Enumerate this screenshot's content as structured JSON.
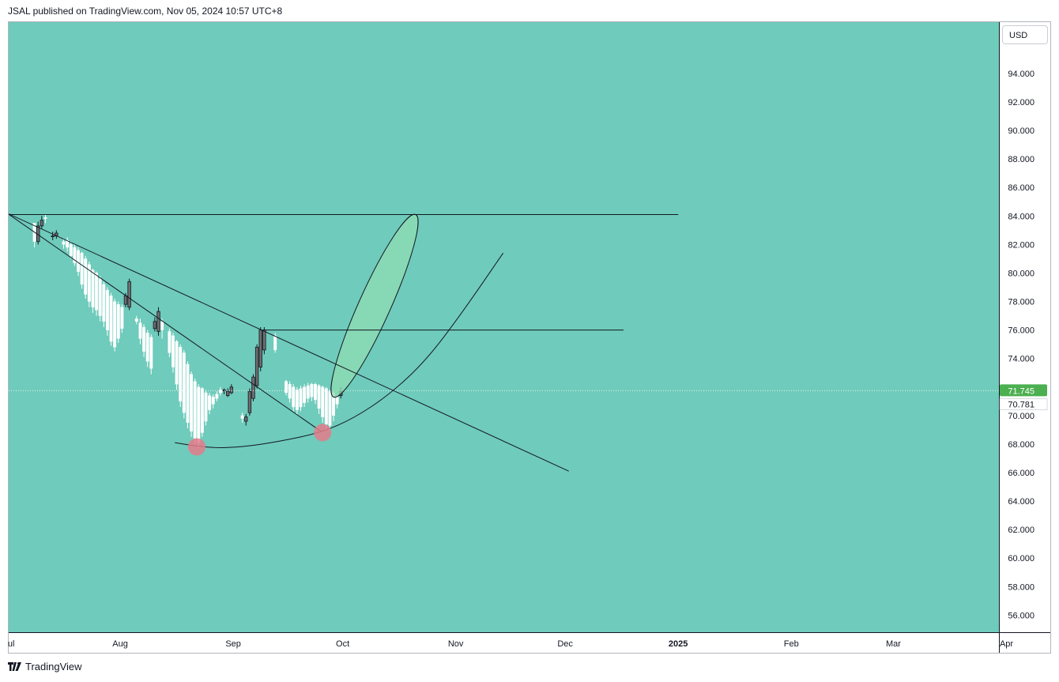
{
  "header": {
    "publish_line": "JSAL published on TradingView.com, Nov 05, 2024 10:57 UTC+8"
  },
  "currency_button": "USD",
  "footer": {
    "brand": "TradingView"
  },
  "colors": {
    "background": "#6fcbbb",
    "up_candle": "#6e6e6e",
    "down_candle": "#ffffff",
    "price_tag": "#4caf50",
    "ellipse_fill": "#8fdcb2",
    "pivot_marker": "#e57b8a"
  },
  "chart_data": {
    "type": "candlestick",
    "title": "",
    "currency": "USD",
    "y_axis": {
      "ylim": [
        54.8,
        97.6
      ],
      "ticks": [
        94,
        92,
        90,
        88,
        86,
        84,
        82,
        80,
        78,
        76,
        74,
        72,
        70,
        68,
        66,
        64,
        62,
        60,
        58,
        56
      ],
      "tick_labels": [
        "94.000",
        "92.000",
        "90.000",
        "88.000",
        "86.000",
        "84.000",
        "82.000",
        "80.000",
        "78.000",
        "76.000",
        "74.000",
        "72.000",
        "70.000",
        "68.000",
        "66.000",
        "64.000",
        "62.000",
        "60.000",
        "58.000",
        "56.000"
      ]
    },
    "x_axis": {
      "labels": [
        "Jul",
        "Aug",
        "Sep",
        "Oct",
        "Nov",
        "Dec",
        "2025",
        "Feb",
        "Mar",
        "Apr"
      ],
      "display_labels": [
        "ul",
        "Aug",
        "Sep",
        "Oct",
        "Nov",
        "Dec",
        "2025",
        "Feb",
        "Mar",
        "Apr"
      ],
      "bold_labels": [
        "2025"
      ]
    },
    "last_price": {
      "value": 71.745,
      "label": "71.745"
    },
    "secondary_price": {
      "value": 70.781,
      "label": "70.781"
    },
    "candles": [
      [
        7.5,
        83.5,
        82.2,
        83.5,
        81.8
      ],
      [
        8.5,
        82.2,
        83.3,
        83.6,
        82.0
      ],
      [
        9.5,
        83.3,
        83.7,
        84.0,
        83.1
      ],
      [
        10.5,
        83.9,
        83.8,
        84.1,
        83.5
      ],
      [
        12.5,
        82.6,
        82.6,
        82.9,
        82.3
      ],
      [
        13.5,
        82.6,
        82.8,
        83.0,
        82.4
      ],
      [
        15.5,
        82.2,
        82.0,
        82.4,
        81.7
      ],
      [
        16.5,
        82.3,
        81.8,
        82.5,
        81.5
      ],
      [
        17.5,
        82.0,
        81.2,
        82.2,
        81.0
      ],
      [
        18.5,
        81.8,
        80.7,
        82.0,
        80.5
      ],
      [
        19.5,
        81.6,
        80.1,
        81.8,
        79.8
      ],
      [
        20.5,
        81.4,
        79.2,
        81.5,
        78.9
      ],
      [
        21.5,
        81.0,
        78.5,
        81.2,
        78.2
      ],
      [
        22.5,
        80.6,
        78.0,
        80.8,
        77.6
      ],
      [
        23.5,
        80.2,
        77.6,
        80.3,
        77.2
      ],
      [
        24.5,
        80.0,
        77.4,
        80.1,
        77.0
      ],
      [
        25.5,
        79.6,
        77.0,
        79.8,
        76.6
      ],
      [
        26.5,
        79.2,
        76.6,
        79.4,
        76.2
      ],
      [
        27.5,
        78.8,
        76.0,
        79.0,
        75.6
      ],
      [
        28.5,
        78.4,
        75.2,
        78.6,
        74.9
      ],
      [
        29.5,
        78.0,
        74.8,
        78.2,
        74.5
      ],
      [
        30.5,
        77.8,
        75.4,
        78.0,
        75.1
      ],
      [
        31.5,
        77.6,
        76.1,
        77.8,
        75.8
      ],
      [
        32.5,
        77.8,
        78.4,
        78.6,
        77.6
      ],
      [
        33.5,
        77.6,
        79.4,
        79.6,
        77.4
      ],
      [
        35.5,
        76.8,
        76.6,
        77.0,
        76.4
      ],
      [
        36.5,
        76.5,
        75.4,
        76.8,
        75.0
      ],
      [
        37.5,
        76.2,
        74.5,
        76.4,
        74.1
      ],
      [
        38.5,
        75.8,
        73.8,
        76.0,
        73.4
      ],
      [
        39.5,
        75.5,
        73.3,
        75.7,
        72.9
      ],
      [
        40.5,
        76.1,
        76.6,
        76.9,
        75.9
      ],
      [
        41.5,
        75.9,
        77.3,
        77.6,
        75.6
      ],
      [
        42.5,
        76.6,
        76.0,
        76.8,
        75.4
      ],
      [
        44.5,
        75.9,
        74.4,
        76.1,
        74.1
      ],
      [
        45.5,
        75.6,
        73.4,
        75.8,
        73.0
      ],
      [
        46.5,
        75.2,
        72.2,
        75.3,
        71.8
      ],
      [
        47.5,
        74.8,
        71.0,
        75.0,
        70.6
      ],
      [
        48.5,
        74.4,
        70.2,
        74.6,
        69.8
      ],
      [
        49.5,
        73.6,
        69.5,
        73.8,
        69.1
      ],
      [
        50.5,
        72.9,
        68.9,
        73.1,
        68.5
      ],
      [
        51.5,
        72.4,
        68.4,
        72.6,
        68.0
      ],
      [
        52.5,
        72.0,
        68.1,
        72.2,
        67.7
      ],
      [
        53.5,
        71.9,
        68.8,
        72.0,
        68.5
      ],
      [
        54.5,
        71.6,
        69.6,
        71.8,
        69.3
      ],
      [
        55.5,
        71.4,
        70.4,
        71.6,
        70.1
      ],
      [
        56.5,
        71.3,
        70.8,
        71.5,
        70.5
      ],
      [
        57.5,
        71.5,
        71.2,
        71.7,
        71.0
      ],
      [
        58.5,
        71.8,
        71.6,
        72.0,
        71.4
      ],
      [
        59.5,
        71.8,
        71.8,
        71.9,
        71.5
      ],
      [
        60.5,
        71.4,
        71.7,
        71.9,
        71.3
      ],
      [
        61.5,
        71.6,
        72.0,
        72.2,
        71.5
      ],
      [
        64.5,
        70.0,
        69.8,
        70.2,
        69.5
      ],
      [
        65.5,
        69.6,
        69.9,
        70.1,
        69.3
      ],
      [
        66.5,
        70.2,
        71.7,
        71.9,
        70.0
      ],
      [
        67.5,
        71.2,
        72.7,
        72.9,
        71.0
      ],
      [
        68.5,
        72.1,
        74.8,
        75.0,
        71.9
      ],
      [
        69.5,
        73.4,
        76.0,
        76.2,
        73.1
      ],
      [
        70.5,
        74.6,
        76.0,
        76.2,
        74.3
      ],
      [
        73.5,
        75.6,
        74.6,
        75.8,
        74.4
      ],
      [
        76.5,
        72.4,
        71.6,
        72.5,
        71.4
      ],
      [
        77.5,
        72.2,
        71.2,
        72.4,
        70.9
      ],
      [
        78.5,
        72.0,
        70.6,
        72.2,
        70.3
      ],
      [
        79.5,
        71.8,
        70.4,
        72.0,
        70.1
      ],
      [
        80.5,
        71.9,
        70.6,
        72.1,
        70.3
      ],
      [
        81.5,
        72.0,
        70.9,
        72.2,
        70.6
      ],
      [
        82.5,
        72.1,
        71.2,
        72.3,
        70.9
      ],
      [
        83.5,
        72.2,
        71.3,
        72.3,
        71.0
      ],
      [
        84.5,
        72.2,
        71.1,
        72.3,
        70.8
      ],
      [
        85.5,
        72.1,
        70.5,
        72.2,
        70.1
      ],
      [
        86.5,
        72.0,
        69.9,
        72.1,
        69.5
      ],
      [
        87.5,
        71.9,
        69.4,
        72.0,
        69.0
      ],
      [
        88.5,
        71.7,
        69.3,
        71.8,
        68.9
      ],
      [
        89.5,
        71.6,
        70.0,
        71.7,
        69.6
      ],
      [
        90.5,
        71.3,
        70.8,
        71.4,
        70.5
      ],
      [
        91.5,
        71.4,
        71.7,
        72.0,
        71.2
      ]
    ],
    "drawings": {
      "horizontal_lines": [
        {
          "price": 84.1,
          "from_day": 0,
          "to_day": 184
        },
        {
          "price": 76.0,
          "from_day": 70,
          "to_day": 169
        }
      ],
      "trend_lines": [
        {
          "from": [
            0,
            84.2
          ],
          "to": [
            154,
            66.1
          ]
        },
        {
          "from": [
            0,
            84.2
          ],
          "to": [
            86,
            68.9
          ]
        }
      ],
      "arc_points": [
        [
          46,
          68.1
        ],
        [
          55,
          67.7
        ],
        [
          65,
          67.8
        ],
        [
          75,
          68.2
        ],
        [
          86,
          68.8
        ],
        [
          95,
          69.8
        ],
        [
          105,
          71.5
        ],
        [
          115,
          73.9
        ],
        [
          125,
          77.3
        ],
        [
          136,
          81.4
        ]
      ],
      "ellipse": {
        "center": [
          103,
          77.4
        ],
        "point_low": [
          89.5,
          71.3
        ],
        "point_high": [
          112,
          84.1
        ],
        "half_width_days": 2.8
      },
      "pivot_markers": [
        [
          52,
          67.8
        ],
        [
          86.5,
          68.8
        ]
      ]
    }
  }
}
